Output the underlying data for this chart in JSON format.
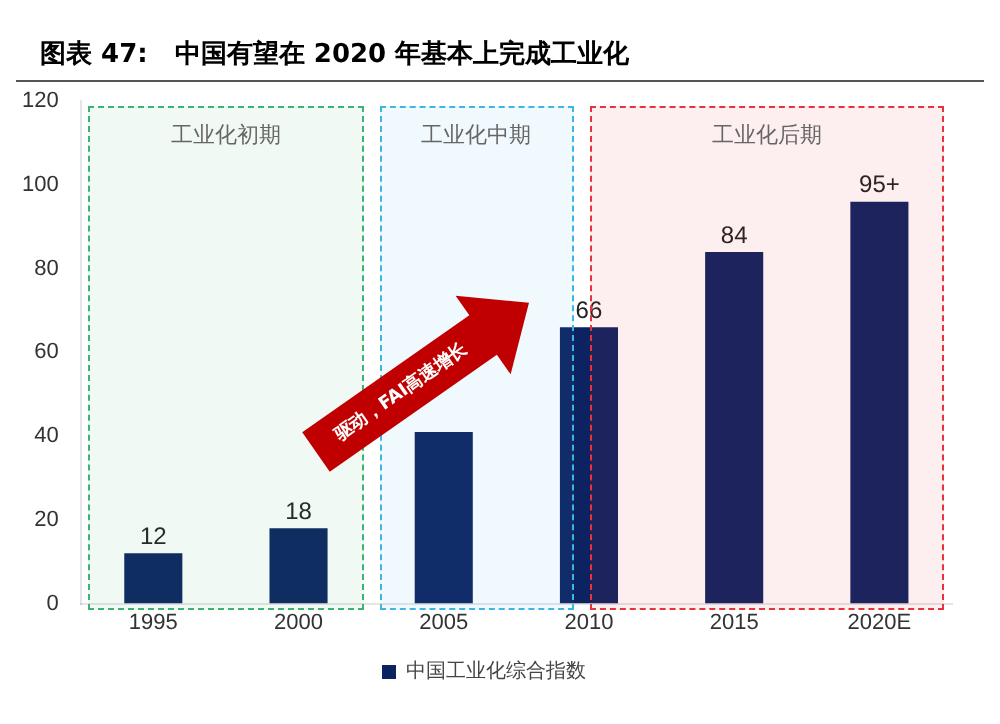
{
  "chart_data": {
    "type": "bar",
    "title": "图表 47:   中国有望在 2020 年基本上完成工业化",
    "categories": [
      "1995",
      "2000",
      "2005",
      "2010",
      "2015",
      "2020E"
    ],
    "series": [
      {
        "name": "中国工业化综合指数",
        "color": "#0d2260",
        "values": [
          12,
          18,
          41,
          66,
          84,
          96
        ],
        "value_labels": [
          "12",
          "18",
          null,
          "66",
          "84",
          "95+"
        ]
      }
    ],
    "ylim": [
      0,
      120
    ],
    "yticks": [
      0,
      20,
      40,
      60,
      80,
      100,
      120
    ],
    "grid": false,
    "legend": "bottom",
    "bands": [
      {
        "axis": "x",
        "from": "1995",
        "to": "2000",
        "label": "工业化初期",
        "color": "#3cb371"
      },
      {
        "axis": "x",
        "from": "2005",
        "to": "2010",
        "label": "工业化中期",
        "color": "#3fb6e0"
      },
      {
        "axis": "x",
        "from": "2010",
        "to": "2020E",
        "label": "工业化后期",
        "color": "#e8323c"
      }
    ],
    "annotations": [
      "驱动，FAI高速增长"
    ]
  }
}
